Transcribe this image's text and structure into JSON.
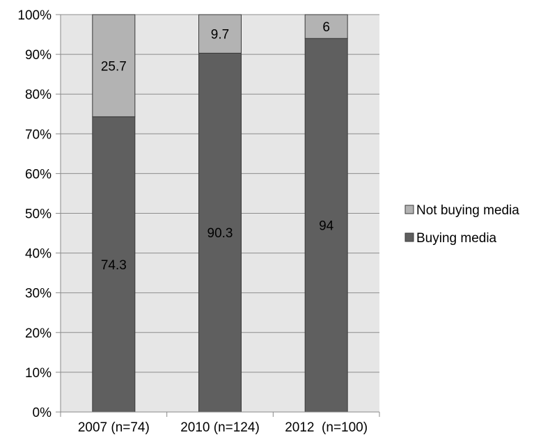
{
  "chart_data": {
    "type": "bar",
    "stacked": true,
    "percent_stacked": true,
    "categories": [
      "2007 (n=74)",
      "2010 (n=124)",
      "2012  (n=100)"
    ],
    "series": [
      {
        "name": "Buying media",
        "values": [
          74.3,
          90.3,
          94
        ],
        "labels": [
          "74.3",
          "90.3",
          "94"
        ],
        "color": "#5f5f5f"
      },
      {
        "name": "Not buying media",
        "values": [
          25.7,
          9.7,
          6
        ],
        "labels": [
          "25.7",
          "9.7",
          "6"
        ],
        "color": "#b3b3b3"
      }
    ],
    "y_ticks": [
      "0%",
      "10%",
      "20%",
      "30%",
      "40%",
      "50%",
      "60%",
      "70%",
      "80%",
      "90%",
      "100%"
    ],
    "ylim": [
      0,
      100
    ],
    "grid": true,
    "legend": {
      "placement": "right",
      "entries": [
        "Not buying media",
        "Buying media"
      ]
    },
    "colors": {
      "plot_background": "#e6e6e6",
      "gridline": "#8c8c8c",
      "bar_border": "#3a3a3a",
      "axis": "#888888"
    }
  }
}
